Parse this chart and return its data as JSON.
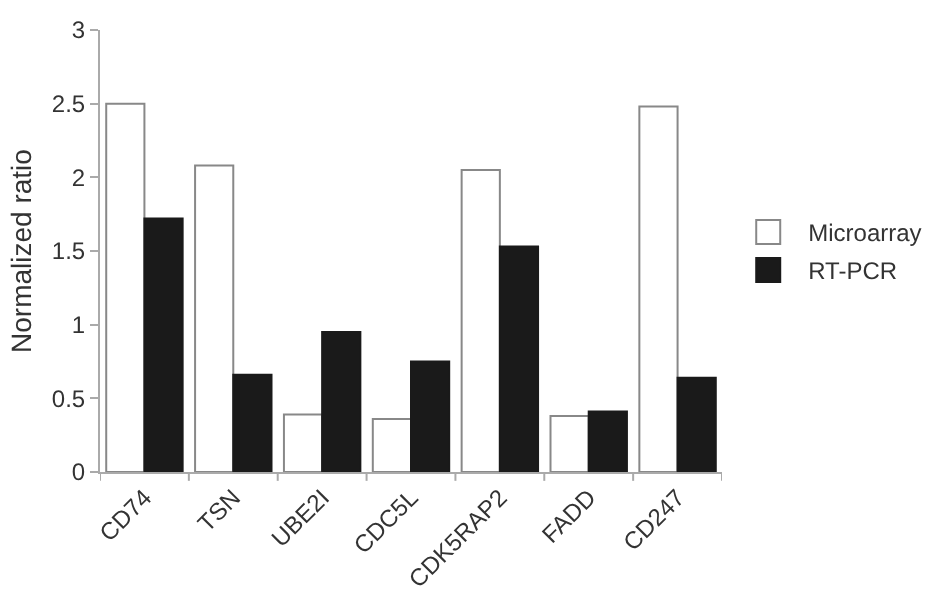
{
  "chart_data": {
    "type": "bar",
    "ylabel": "Normalized ratio",
    "categories": [
      "CD74",
      "TSN",
      "UBE2I",
      "CDC5L",
      "CDK5RAP2",
      "FADD",
      "CD247"
    ],
    "series": [
      {
        "name": "Microarray",
        "color": "#ffffff",
        "values": [
          2.5,
          2.08,
          0.39,
          0.36,
          2.05,
          0.38,
          2.48
        ]
      },
      {
        "name": "RT-PCR",
        "color": "#1a1a1a",
        "values": [
          1.72,
          0.66,
          0.95,
          0.75,
          1.53,
          0.41,
          0.64
        ]
      }
    ],
    "ylim": [
      0,
      3
    ],
    "yticks": [
      0,
      0.5,
      1,
      1.5,
      2,
      2.5,
      3
    ],
    "grid": false,
    "legend": "right"
  }
}
